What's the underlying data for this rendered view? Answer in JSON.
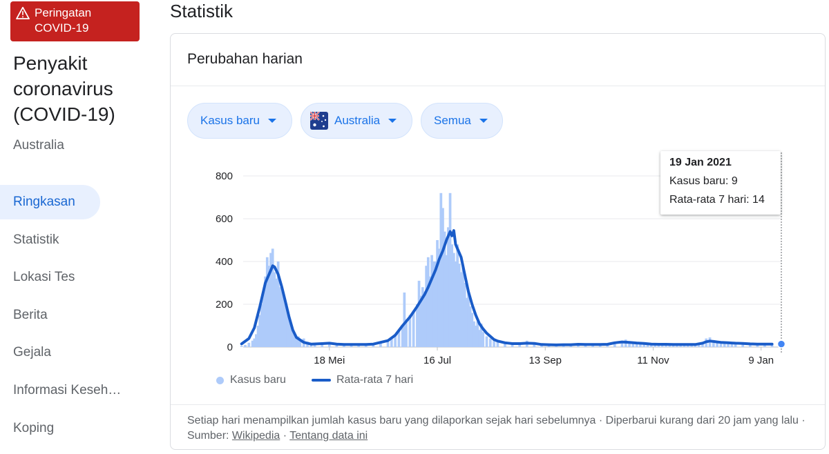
{
  "alert": {
    "line1": "Peringatan",
    "line2": "COVID-19",
    "bg_color": "#c5221f",
    "icon": "warning-triangle-icon"
  },
  "sidebar": {
    "title_lines": [
      "Penyakit",
      "coronavirus",
      "(COVID-19)"
    ],
    "country": "Australia",
    "nav": [
      {
        "label": "Ringkasan",
        "active": true
      },
      {
        "label": "Statistik",
        "active": false
      },
      {
        "label": "Lokasi Tes",
        "active": false
      },
      {
        "label": "Berita",
        "active": false
      },
      {
        "label": "Gejala",
        "active": false
      },
      {
        "label": "Informasi Keseh…",
        "active": false
      },
      {
        "label": "Koping",
        "active": false
      }
    ]
  },
  "main": {
    "title": "Statistik",
    "card_title": "Perubahan harian",
    "filters": {
      "metric": "Kasus baru",
      "country": "Australia",
      "scope": "Semua",
      "country_flag_icon": "australia-flag-icon"
    },
    "tooltip": {
      "date": "19 Jan 2021",
      "cases_label": "Kasus baru: 9",
      "avg_label": "Rata-rata 7 hari: 14"
    },
    "footnote": {
      "text_before": "Setiap hari menampilkan jumlah kasus baru yang dilaporkan sejak hari sebelumnya · Diperbarui kurang dari 20 jam yang lalu · Sumber: ",
      "source_link": "Wikipedia",
      "separator": " · ",
      "about_link": "Tentang data ini"
    }
  },
  "colors": {
    "accent": "#1a73e8",
    "bar": "#aecbfa",
    "line": "#1a5cc8",
    "active_nav_bg": "#e8f0fe"
  },
  "chart_data": {
    "type": "bar",
    "title": "Perubahan harian",
    "ylim": [
      0,
      800
    ],
    "y_ticks": [
      0,
      200,
      400,
      600,
      800
    ],
    "x_ticks": [
      {
        "label": "18 Mei",
        "day": 108
      },
      {
        "label": "16 Jul",
        "day": 167
      },
      {
        "label": "13 Sep",
        "day": 226
      },
      {
        "label": "11 Nov",
        "day": 285
      },
      {
        "label": "9 Jan",
        "day": 344
      }
    ],
    "x_range_days": [
      60,
      354
    ],
    "series": [
      {
        "name": "Kasus baru",
        "type": "bar",
        "points": [
          [
            60,
            5
          ],
          [
            62,
            10
          ],
          [
            64,
            20
          ],
          [
            66,
            30
          ],
          [
            67,
            40
          ],
          [
            68,
            60
          ],
          [
            69,
            100
          ],
          [
            70,
            150
          ],
          [
            71,
            200
          ],
          [
            72,
            250
          ],
          [
            73,
            330
          ],
          [
            74,
            420
          ],
          [
            75,
            380
          ],
          [
            76,
            440
          ],
          [
            77,
            460
          ],
          [
            78,
            350
          ],
          [
            79,
            320
          ],
          [
            80,
            400
          ],
          [
            81,
            280
          ],
          [
            82,
            260
          ],
          [
            83,
            250
          ],
          [
            84,
            200
          ],
          [
            85,
            160
          ],
          [
            86,
            130
          ],
          [
            87,
            100
          ],
          [
            88,
            80
          ],
          [
            89,
            60
          ],
          [
            90,
            40
          ],
          [
            91,
            50
          ],
          [
            92,
            30
          ],
          [
            94,
            40
          ],
          [
            96,
            25
          ],
          [
            98,
            15
          ],
          [
            100,
            12
          ],
          [
            104,
            15
          ],
          [
            108,
            20
          ],
          [
            112,
            15
          ],
          [
            116,
            10
          ],
          [
            120,
            12
          ],
          [
            124,
            15
          ],
          [
            128,
            10
          ],
          [
            132,
            15
          ],
          [
            136,
            20
          ],
          [
            140,
            25
          ],
          [
            142,
            40
          ],
          [
            144,
            60
          ],
          [
            146,
            80
          ],
          [
            148,
            100
          ],
          [
            149,
            255
          ],
          [
            150,
            130
          ],
          [
            152,
            150
          ],
          [
            154,
            170
          ],
          [
            156,
            200
          ],
          [
            157,
            310
          ],
          [
            158,
            240
          ],
          [
            159,
            280
          ],
          [
            160,
            260
          ],
          [
            161,
            380
          ],
          [
            162,
            420
          ],
          [
            163,
            330
          ],
          [
            164,
            430
          ],
          [
            165,
            400
          ],
          [
            166,
            400
          ],
          [
            167,
            500
          ],
          [
            168,
            460
          ],
          [
            169,
            720
          ],
          [
            170,
            650
          ],
          [
            171,
            540
          ],
          [
            172,
            430
          ],
          [
            173,
            560
          ],
          [
            174,
            720
          ],
          [
            175,
            480
          ],
          [
            176,
            440
          ],
          [
            177,
            400
          ],
          [
            178,
            480
          ],
          [
            179,
            390
          ],
          [
            180,
            350
          ],
          [
            181,
            380
          ],
          [
            182,
            300
          ],
          [
            183,
            230
          ],
          [
            184,
            260
          ],
          [
            185,
            190
          ],
          [
            186,
            160
          ],
          [
            187,
            120
          ],
          [
            188,
            100
          ],
          [
            189,
            120
          ],
          [
            190,
            80
          ],
          [
            191,
            110
          ],
          [
            192,
            70
          ],
          [
            194,
            50
          ],
          [
            196,
            40
          ],
          [
            198,
            30
          ],
          [
            200,
            25
          ],
          [
            204,
            20
          ],
          [
            208,
            15
          ],
          [
            212,
            20
          ],
          [
            216,
            30
          ],
          [
            220,
            15
          ],
          [
            224,
            10
          ],
          [
            228,
            12
          ],
          [
            232,
            10
          ],
          [
            236,
            15
          ],
          [
            240,
            12
          ],
          [
            244,
            15
          ],
          [
            248,
            12
          ],
          [
            252,
            10
          ],
          [
            256,
            14
          ],
          [
            260,
            12
          ],
          [
            264,
            20
          ],
          [
            268,
            25
          ],
          [
            270,
            35
          ],
          [
            272,
            25
          ],
          [
            274,
            20
          ],
          [
            276,
            18
          ],
          [
            278,
            20
          ],
          [
            280,
            16
          ],
          [
            282,
            14
          ],
          [
            284,
            14
          ],
          [
            286,
            12
          ],
          [
            288,
            12
          ],
          [
            290,
            14
          ],
          [
            292,
            12
          ],
          [
            294,
            16
          ],
          [
            296,
            12
          ],
          [
            298,
            10
          ],
          [
            300,
            14
          ],
          [
            302,
            12
          ],
          [
            304,
            12
          ],
          [
            306,
            12
          ],
          [
            308,
            16
          ],
          [
            310,
            12
          ],
          [
            312,
            14
          ],
          [
            314,
            40
          ],
          [
            316,
            45
          ],
          [
            318,
            30
          ],
          [
            320,
            25
          ],
          [
            322,
            25
          ],
          [
            324,
            20
          ],
          [
            326,
            20
          ],
          [
            328,
            18
          ],
          [
            330,
            15
          ],
          [
            334,
            15
          ],
          [
            338,
            12
          ],
          [
            342,
            10
          ],
          [
            346,
            12
          ],
          [
            350,
            9
          ]
        ]
      },
      {
        "name": "Rata-rata 7 hari",
        "type": "line",
        "points": [
          [
            60,
            15
          ],
          [
            64,
            40
          ],
          [
            67,
            90
          ],
          [
            70,
            190
          ],
          [
            73,
            300
          ],
          [
            76,
            360
          ],
          [
            77,
            380
          ],
          [
            78,
            375
          ],
          [
            80,
            340
          ],
          [
            82,
            280
          ],
          [
            84,
            210
          ],
          [
            86,
            140
          ],
          [
            88,
            80
          ],
          [
            90,
            45
          ],
          [
            94,
            22
          ],
          [
            98,
            14
          ],
          [
            104,
            16
          ],
          [
            108,
            18
          ],
          [
            112,
            14
          ],
          [
            116,
            12
          ],
          [
            120,
            12
          ],
          [
            124,
            12
          ],
          [
            128,
            12
          ],
          [
            132,
            14
          ],
          [
            136,
            22
          ],
          [
            140,
            30
          ],
          [
            144,
            55
          ],
          [
            148,
            100
          ],
          [
            152,
            140
          ],
          [
            156,
            190
          ],
          [
            160,
            245
          ],
          [
            162,
            280
          ],
          [
            164,
            320
          ],
          [
            166,
            360
          ],
          [
            168,
            410
          ],
          [
            170,
            450
          ],
          [
            172,
            500
          ],
          [
            174,
            540
          ],
          [
            175,
            520
          ],
          [
            176,
            545
          ],
          [
            177,
            480
          ],
          [
            178,
            460
          ],
          [
            180,
            420
          ],
          [
            182,
            340
          ],
          [
            184,
            260
          ],
          [
            186,
            200
          ],
          [
            188,
            150
          ],
          [
            190,
            110
          ],
          [
            192,
            85
          ],
          [
            194,
            65
          ],
          [
            196,
            50
          ],
          [
            198,
            35
          ],
          [
            200,
            28
          ],
          [
            204,
            20
          ],
          [
            208,
            16
          ],
          [
            212,
            16
          ],
          [
            216,
            18
          ],
          [
            220,
            17
          ],
          [
            224,
            12
          ],
          [
            228,
            11
          ],
          [
            232,
            10
          ],
          [
            236,
            11
          ],
          [
            240,
            11
          ],
          [
            244,
            13
          ],
          [
            248,
            12
          ],
          [
            252,
            12
          ],
          [
            256,
            12
          ],
          [
            260,
            13
          ],
          [
            264,
            20
          ],
          [
            268,
            24
          ],
          [
            272,
            22
          ],
          [
            276,
            19
          ],
          [
            280,
            17
          ],
          [
            284,
            14
          ],
          [
            288,
            13
          ],
          [
            292,
            13
          ],
          [
            296,
            12
          ],
          [
            300,
            12
          ],
          [
            304,
            12
          ],
          [
            308,
            12
          ],
          [
            312,
            18
          ],
          [
            314,
            25
          ],
          [
            316,
            28
          ],
          [
            318,
            26
          ],
          [
            320,
            24
          ],
          [
            322,
            22
          ],
          [
            324,
            21
          ],
          [
            326,
            20
          ],
          [
            328,
            19
          ],
          [
            330,
            18
          ],
          [
            334,
            17
          ],
          [
            338,
            15
          ],
          [
            342,
            14
          ],
          [
            346,
            14
          ],
          [
            350,
            14
          ]
        ]
      }
    ],
    "legend": [
      "Kasus baru",
      "Rata-rata 7 hari"
    ],
    "legend_position": "bottom-left",
    "grid": true,
    "highlight": {
      "date": "19 Jan 2021",
      "cases": 9,
      "avg": 14
    }
  }
}
